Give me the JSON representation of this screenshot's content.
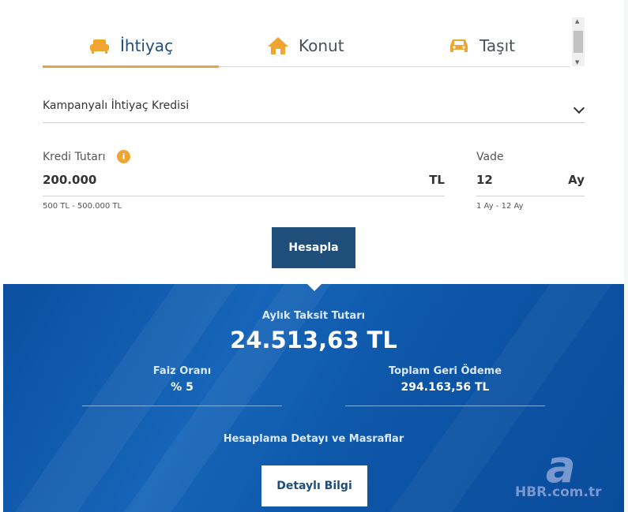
{
  "tabs": [
    {
      "label": "İhtiyaç",
      "icon": "sofa-icon",
      "active": true
    },
    {
      "label": "Konut",
      "icon": "house-icon"
    },
    {
      "label": "Taşıt",
      "icon": "car-icon"
    }
  ],
  "form": {
    "loan_type": "Kampanyalı İhtiyaç Kredisi",
    "amount_label": "Kredi Tutarı",
    "amount_value": "200.000",
    "amount_unit": "TL",
    "amount_hint": "500 TL - 500.000 TL",
    "term_label": "Vade",
    "term_value": "12",
    "term_unit": "Ay",
    "term_hint": "1 Ay - 12 Ay",
    "info": "i",
    "calc_button": "Hesapla"
  },
  "result": {
    "monthly_label": "Aylık Taksit Tutarı",
    "monthly_value": "24.513,63 TL",
    "rate_label": "Faiz Oranı",
    "rate_value": "% 5",
    "total_label": "Toplam Geri Ödeme",
    "total_value": "294.163,56 TL",
    "details_label": "Hesaplama Detayı ve Masraflar",
    "details_button": "Detaylı Bilgi"
  },
  "watermark": {
    "logo": "a",
    "text": "HBR.com.tr"
  },
  "colors": {
    "accent": "#f0a530",
    "primary": "#1e4e79",
    "panel": "#0d56a8"
  }
}
